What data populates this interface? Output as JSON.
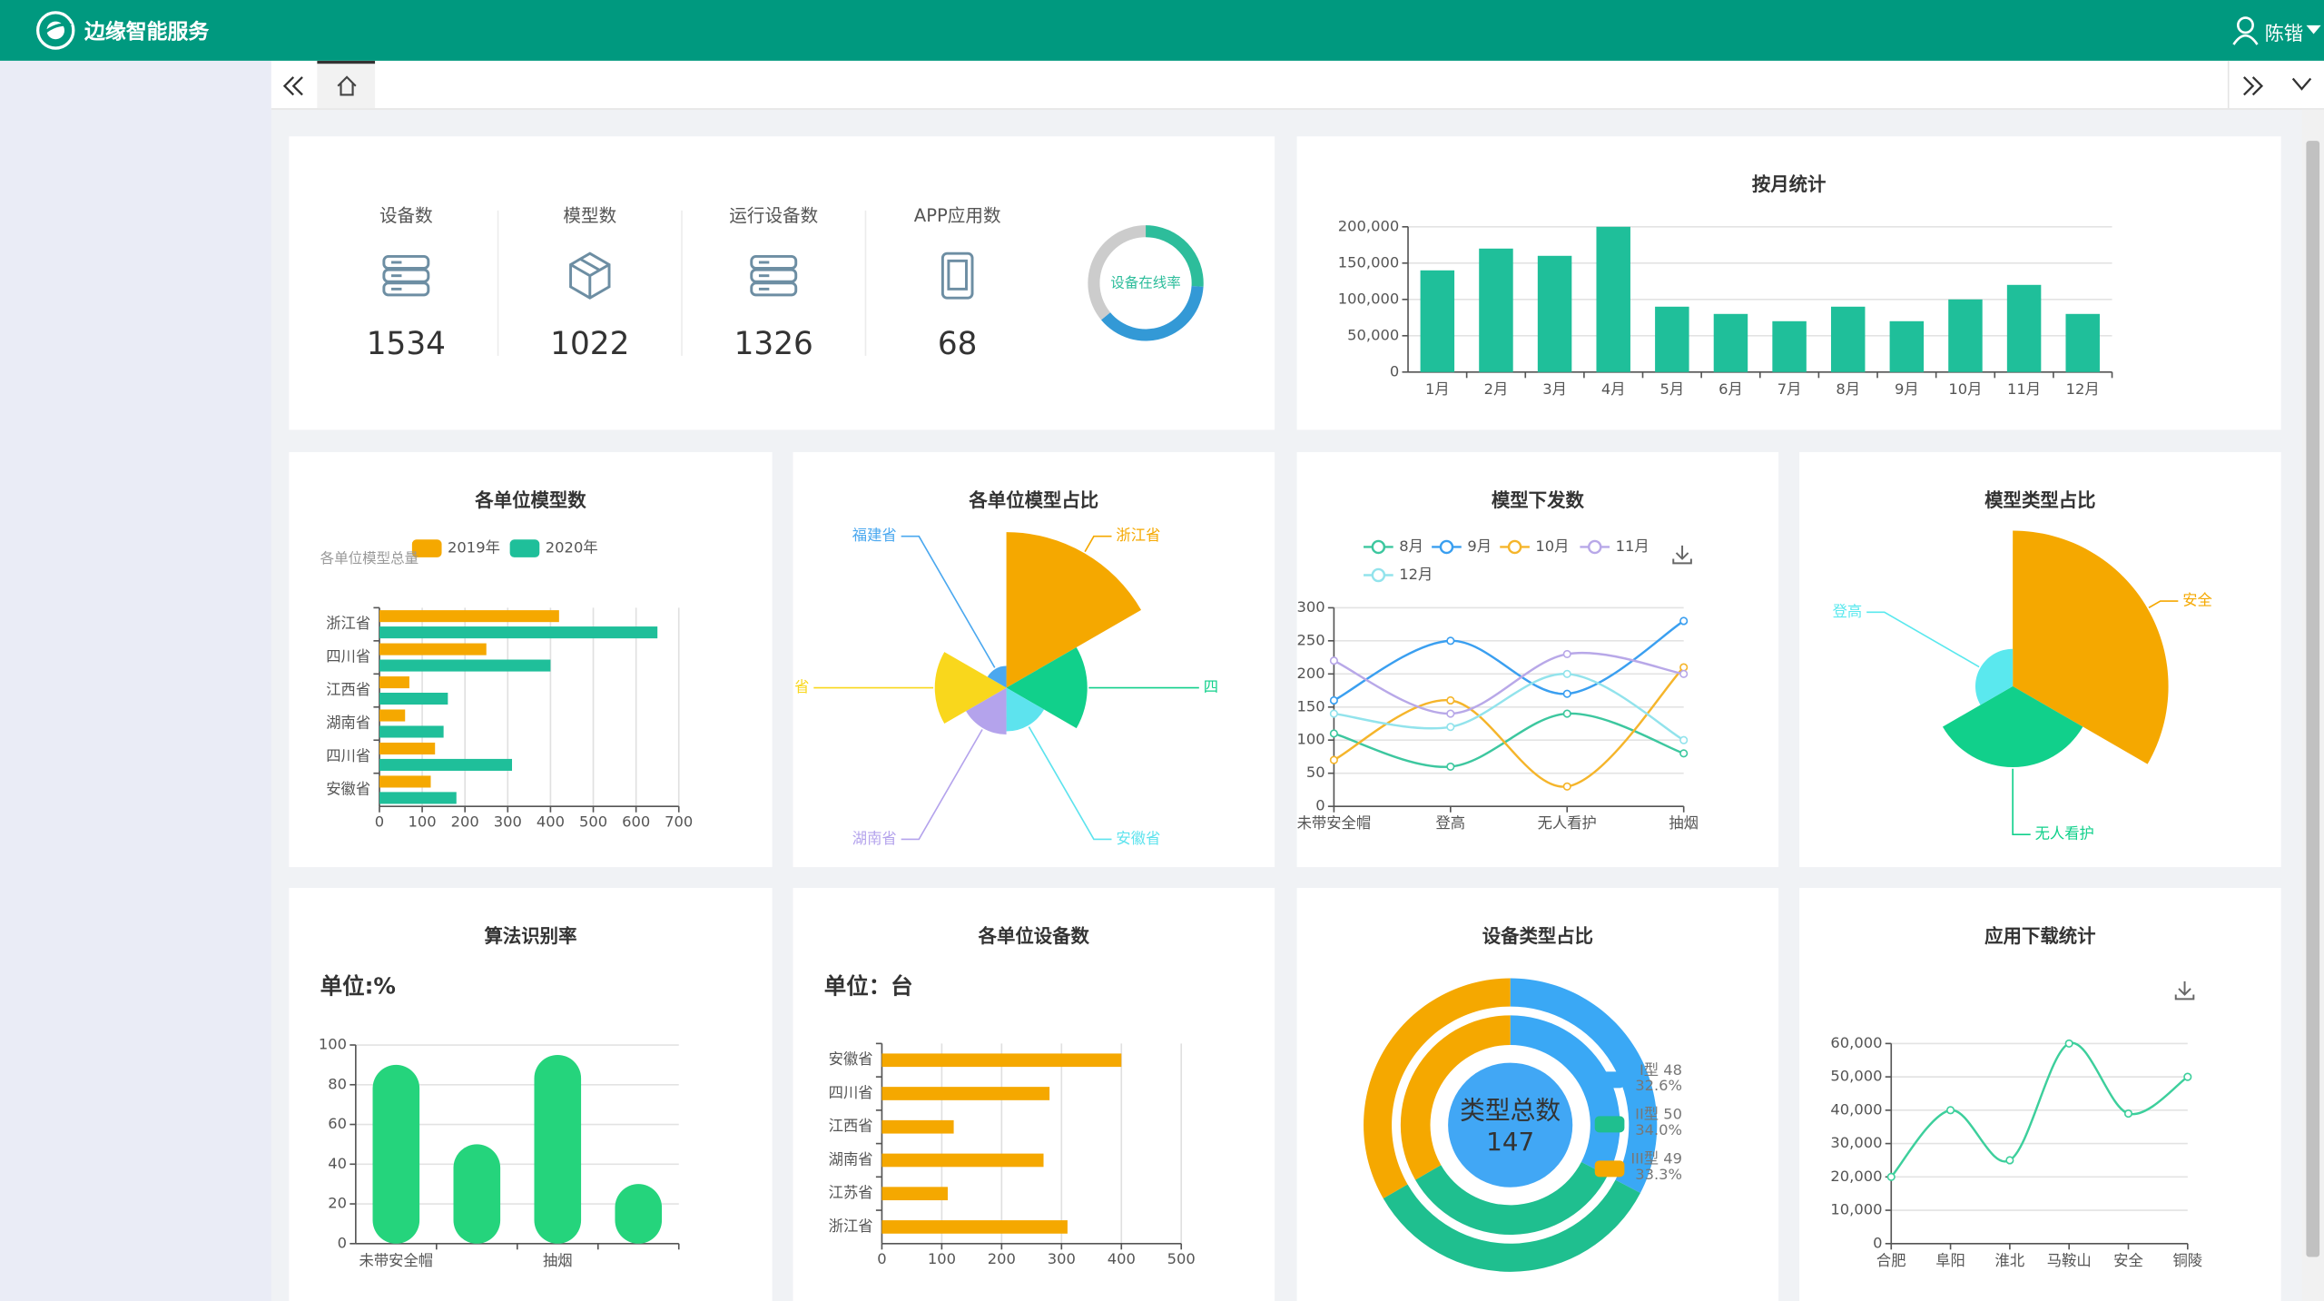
{
  "header": {
    "title": "边缘智能服务",
    "user": "陈锴"
  },
  "stats": [
    {
      "label": "设备数",
      "value": 1534
    },
    {
      "label": "模型数",
      "value": 1022
    },
    {
      "label": "运行设备数",
      "value": 1326
    },
    {
      "label": "APP应用数",
      "value": 68
    }
  ],
  "chart_data": [
    {
      "type": "pie",
      "variant": "donut",
      "title": "设备在线率",
      "values": [
        26,
        38,
        36
      ],
      "colors": [
        "#2dbd9b",
        "#3399d6",
        "#cccccc"
      ]
    },
    {
      "type": "bar",
      "title": "按月统计",
      "categories": [
        "1月",
        "2月",
        "3月",
        "4月",
        "5月",
        "6月",
        "7月",
        "8月",
        "9月",
        "10月",
        "11月",
        "12月"
      ],
      "values": [
        140000,
        170000,
        160000,
        200000,
        90000,
        80000,
        70000,
        90000,
        70000,
        100000,
        120000,
        80000
      ],
      "color": "#1fbf9a",
      "ylim": [
        0,
        200000
      ],
      "yticks": [
        0,
        {
          "value": 50000,
          "label": "50,000"
        },
        {
          "value": 100000,
          "label": "100,000"
        },
        {
          "value": 150000,
          "label": "150,000"
        },
        {
          "value": 200000,
          "label": "200,000"
        }
      ],
      "grid": true
    },
    {
      "type": "bar",
      "orientation": "horizontal",
      "title": "各单位模型数",
      "y_axis_label": "各单位模型总量",
      "legend": "top",
      "categories": [
        "浙江省",
        "四川省",
        "江西省",
        "湖南省",
        "四川省",
        "安徽省"
      ],
      "series": [
        {
          "name": "2019年",
          "color": "#f5a800",
          "values": [
            420,
            250,
            70,
            60,
            130,
            120
          ]
        },
        {
          "name": "2020年",
          "color": "#1fbf9a",
          "values": [
            650,
            400,
            160,
            150,
            310,
            180
          ]
        }
      ],
      "xlim": [
        0,
        700
      ],
      "xticks": [
        0,
        100,
        200,
        300,
        400,
        500,
        600,
        700
      ],
      "grid": true
    },
    {
      "type": "pie",
      "rose": true,
      "title": "各单位模型占比",
      "categories": [
        "浙江省",
        "四",
        "安徽省",
        "湖南省",
        "省",
        "福建省"
      ],
      "values": [
        100,
        52,
        28,
        30,
        46,
        14
      ],
      "colors": [
        "#f5a800",
        "#11d08b",
        "#5de3ee",
        "#b4a3ec",
        "#f9d71c",
        "#4ba8ef"
      ]
    },
    {
      "type": "line",
      "title": "模型下发数",
      "smooth": true,
      "legend": "top",
      "categories": [
        "未带安全帽",
        "登高",
        "无人看护",
        "抽烟"
      ],
      "series": [
        {
          "name": "8月",
          "color": "#3dc79f",
          "values": [
            110,
            60,
            140,
            80
          ]
        },
        {
          "name": "9月",
          "color": "#3a9ff0",
          "values": [
            160,
            250,
            170,
            280
          ]
        },
        {
          "name": "10月",
          "color": "#f5b52b",
          "values": [
            70,
            160,
            30,
            210
          ]
        },
        {
          "name": "11月",
          "color": "#b8a8e8",
          "values": [
            220,
            140,
            230,
            200
          ]
        },
        {
          "name": "12月",
          "color": "#92e3ec",
          "values": [
            140,
            120,
            200,
            100
          ]
        }
      ],
      "ylim": [
        0,
        300
      ],
      "yticks": [
        0,
        50,
        100,
        150,
        200,
        250,
        300
      ],
      "grid": true
    },
    {
      "type": "pie",
      "rose": true,
      "title": "模型类型占比",
      "categories": [
        "安全",
        "无人看护",
        "登高"
      ],
      "values": [
        100,
        52,
        24
      ],
      "colors": [
        "#f5a800",
        "#11d08b",
        "#5ae8ee"
      ]
    },
    {
      "type": "bar",
      "title": "算法识别率",
      "subtitle": "单位:%",
      "rounded": true,
      "categories": [
        "未带安全帽",
        null,
        "抽烟",
        null
      ],
      "values": [
        90,
        50,
        95,
        30
      ],
      "color": "#25d47c",
      "ylim": [
        0,
        100
      ],
      "yticks": [
        0,
        20,
        40,
        60,
        80,
        100
      ],
      "grid": true
    },
    {
      "type": "bar",
      "orientation": "horizontal",
      "title": "各单位设备数",
      "subtitle": "单位：台",
      "categories": [
        "安徽省",
        "四川省",
        "江西省",
        "湖南省",
        "江苏省",
        "浙江省"
      ],
      "values": [
        400,
        280,
        120,
        270,
        110,
        310
      ],
      "color": "#f5a800",
      "xlim": [
        0,
        500
      ],
      "xticks": [
        0,
        100,
        200,
        300,
        400,
        500
      ],
      "grid": true
    },
    {
      "type": "pie",
      "variant": "ring",
      "title": "设备类型占比",
      "center_label": "类型总数",
      "total": 147,
      "categories": [
        "I型",
        "II型",
        "III型"
      ],
      "values": [
        48,
        50,
        49
      ],
      "percents": [
        32.6,
        34.0,
        33.3
      ],
      "percent_labels": [
        "32.6%",
        "34.0%",
        "33.3%"
      ],
      "colors": [
        "#3aa8f5",
        "#1fbf8f",
        "#f5a800"
      ]
    },
    {
      "type": "line",
      "title": "应用下载统计",
      "smooth": true,
      "categories": [
        "合肥",
        "阜阳",
        "淮北",
        "马鞍山",
        "安全",
        "铜陵"
      ],
      "values": [
        20000,
        40000,
        25000,
        60000,
        39000,
        50000
      ],
      "color": "#3dcf9c",
      "ylim": [
        0,
        60000
      ],
      "yticks": [
        0,
        {
          "value": 10000,
          "label": "10,000"
        },
        {
          "value": 20000,
          "label": "20,000"
        },
        {
          "value": 30000,
          "label": "30,000"
        },
        {
          "value": 40000,
          "label": "40,000"
        },
        {
          "value": 50000,
          "label": "50,000"
        },
        {
          "value": 60000,
          "label": "60,000"
        }
      ],
      "grid": true
    }
  ]
}
